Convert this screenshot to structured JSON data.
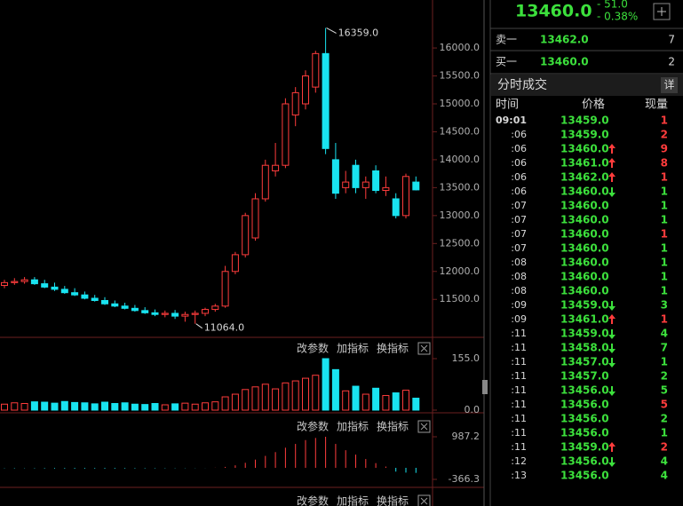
{
  "quote": {
    "price": "13460.0",
    "change": "- 51.0",
    "change_pct": "- 0.38%"
  },
  "order_book": [
    {
      "label": "卖一",
      "price": "13462.0",
      "qty": "7"
    },
    {
      "label": "买一",
      "price": "13460.0",
      "qty": "2"
    }
  ],
  "trades": {
    "title": "分时成交",
    "detail_button": "详",
    "headers": [
      "时间",
      "价格",
      "现量"
    ],
    "rows": [
      {
        "time": "09:01",
        "price": "13459.0",
        "qty": "1",
        "side": "buy"
      },
      {
        "time": ":06",
        "price": "13459.0",
        "qty": "2",
        "side": "buy"
      },
      {
        "time": ":06",
        "price": "13460.0",
        "qty": "9",
        "side": "buy",
        "dir": "up"
      },
      {
        "time": ":06",
        "price": "13461.0",
        "qty": "8",
        "side": "buy",
        "dir": "up"
      },
      {
        "time": ":06",
        "price": "13462.0",
        "qty": "1",
        "side": "buy",
        "dir": "up"
      },
      {
        "time": ":06",
        "price": "13460.0",
        "qty": "1",
        "side": "sell",
        "dir": "down"
      },
      {
        "time": ":07",
        "price": "13460.0",
        "qty": "1",
        "side": "sell"
      },
      {
        "time": ":07",
        "price": "13460.0",
        "qty": "1",
        "side": "sell"
      },
      {
        "time": ":07",
        "price": "13460.0",
        "qty": "1",
        "side": "buy"
      },
      {
        "time": ":07",
        "price": "13460.0",
        "qty": "1",
        "side": "sell"
      },
      {
        "time": ":08",
        "price": "13460.0",
        "qty": "1",
        "side": "sell"
      },
      {
        "time": ":08",
        "price": "13460.0",
        "qty": "1",
        "side": "sell"
      },
      {
        "time": ":08",
        "price": "13460.0",
        "qty": "1",
        "side": "sell"
      },
      {
        "time": ":09",
        "price": "13459.0",
        "qty": "3",
        "side": "sell",
        "dir": "down"
      },
      {
        "time": ":09",
        "price": "13461.0",
        "qty": "1",
        "side": "buy",
        "dir": "up"
      },
      {
        "time": ":11",
        "price": "13459.0",
        "qty": "4",
        "side": "sell",
        "dir": "down"
      },
      {
        "time": ":11",
        "price": "13458.0",
        "qty": "7",
        "side": "sell",
        "dir": "down"
      },
      {
        "time": ":11",
        "price": "13457.0",
        "qty": "1",
        "side": "sell",
        "dir": "down"
      },
      {
        "time": ":11",
        "price": "13457.0",
        "qty": "2",
        "side": "sell"
      },
      {
        "time": ":11",
        "price": "13456.0",
        "qty": "5",
        "side": "sell",
        "dir": "down"
      },
      {
        "time": ":11",
        "price": "13456.0",
        "qty": "5",
        "side": "buy"
      },
      {
        "time": ":11",
        "price": "13456.0",
        "qty": "2",
        "side": "sell"
      },
      {
        "time": ":11",
        "price": "13456.0",
        "qty": "1",
        "side": "sell"
      },
      {
        "time": ":11",
        "price": "13459.0",
        "qty": "2",
        "side": "buy",
        "dir": "up"
      },
      {
        "time": ":12",
        "price": "13456.0",
        "qty": "4",
        "side": "sell",
        "dir": "down"
      },
      {
        "time": ":13",
        "price": "13456.0",
        "qty": "4",
        "side": "sell"
      }
    ]
  },
  "indicator_buttons": [
    "改参数",
    "加指标",
    "换指标"
  ],
  "chart_data": [
    {
      "type": "candlestick",
      "up_color": "#ff3c3c",
      "down_color": "#19e3f0",
      "open": [
        11750,
        11800,
        11820,
        11850,
        11780,
        11720,
        11680,
        11620,
        11580,
        11520,
        11480,
        11420,
        11380,
        11340,
        11300,
        11260,
        11230,
        11250,
        11200,
        11230,
        11250,
        11320,
        11380,
        12000,
        12300,
        12600,
        13300,
        13800,
        13900,
        14800,
        15000,
        15300,
        15900,
        14000,
        13500,
        13900,
        13500,
        13800,
        13450,
        13300,
        13000,
        13600
      ],
      "high": [
        11850,
        11880,
        11900,
        11900,
        11850,
        11800,
        11740,
        11700,
        11640,
        11580,
        11540,
        11480,
        11440,
        11400,
        11360,
        11320,
        11300,
        11310,
        11280,
        11300,
        11350,
        11420,
        12100,
        12350,
        13050,
        13400,
        14000,
        14300,
        15100,
        15300,
        15600,
        15950,
        16359,
        14300,
        13800,
        14000,
        13700,
        13900,
        13700,
        13400,
        13750,
        13700
      ],
      "low": [
        11700,
        11760,
        11780,
        11760,
        11700,
        11650,
        11600,
        11560,
        11500,
        11460,
        11400,
        11360,
        11320,
        11280,
        11240,
        11200,
        11180,
        11150,
        11100,
        11064,
        11200,
        11280,
        11350,
        11950,
        12250,
        12550,
        13250,
        13700,
        13850,
        14600,
        14900,
        15200,
        14100,
        13300,
        13400,
        13400,
        13300,
        13400,
        13350,
        12950,
        12950,
        13450
      ],
      "close": [
        11800,
        11820,
        11850,
        11780,
        11720,
        11680,
        11620,
        11580,
        11520,
        11480,
        11420,
        11380,
        11340,
        11300,
        11260,
        11230,
        11250,
        11200,
        11230,
        11250,
        11320,
        11380,
        12000,
        12300,
        13000,
        13300,
        13900,
        13900,
        15000,
        15200,
        15500,
        15900,
        14200,
        13400,
        13600,
        13500,
        13600,
        13450,
        13500,
        13000,
        13700,
        13460
      ],
      "ylim": [
        10900,
        16700
      ],
      "yticks": [
        {
          "value": 16000,
          "label": "16000.0"
        },
        {
          "value": 15500,
          "label": "15500.0"
        },
        {
          "value": 15000,
          "label": "15000.0"
        },
        {
          "value": 14500,
          "label": "14500.0"
        },
        {
          "value": 14000,
          "label": "14000.0"
        },
        {
          "value": 13500,
          "label": "13500.0"
        },
        {
          "value": 13000,
          "label": "13000.0"
        },
        {
          "value": 12500,
          "label": "12500.0"
        },
        {
          "value": 12000,
          "label": "12000.0"
        },
        {
          "value": 11500,
          "label": "11500.0"
        }
      ],
      "annotations": [
        {
          "text": "16359.0",
          "value": 16359,
          "index": 32
        },
        {
          "text": "11064.0",
          "value": 11064,
          "index": 19
        }
      ]
    },
    {
      "type": "bar",
      "values": [
        18,
        22,
        20,
        25,
        24,
        21,
        26,
        23,
        22,
        19,
        24,
        20,
        22,
        18,
        17,
        20,
        16,
        19,
        21,
        18,
        22,
        25,
        40,
        48,
        62,
        70,
        78,
        64,
        82,
        88,
        96,
        105,
        155,
        122,
        58,
        72,
        48,
        66,
        44,
        52,
        60,
        36
      ],
      "ylim": [
        0,
        155
      ],
      "yticks": [
        {
          "value": 155,
          "label": "155.0"
        },
        {
          "value": 0,
          "label": "0.0"
        }
      ]
    },
    {
      "type": "bar",
      "values": [
        -12,
        -15,
        -10,
        -14,
        -18,
        -20,
        -22,
        -25,
        -24,
        -22,
        -26,
        -24,
        -20,
        -18,
        -16,
        -14,
        -12,
        -10,
        -8,
        -6,
        -4,
        5,
        30,
        80,
        160,
        260,
        380,
        500,
        640,
        760,
        880,
        950,
        987.2,
        760,
        560,
        420,
        280,
        150,
        40,
        -120,
        -150,
        -160
      ],
      "ylim": [
        -366.3,
        987.2
      ],
      "yticks": [
        987.2,
        -366.3
      ]
    }
  ]
}
